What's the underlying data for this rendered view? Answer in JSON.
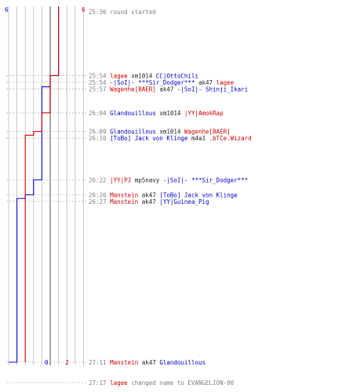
{
  "colors": {
    "team_blue": "#0000cc",
    "team_red": "#cc0000",
    "grid": "#bbbbbb",
    "axis": "#808080",
    "time": "#808080",
    "neutral_text": "#222222",
    "background": "#ffffff"
  },
  "chart_data": {
    "type": "line",
    "x_axis": "team score",
    "y_axis": "game time (mm:ss)",
    "score_ticks": [
      0,
      1,
      2,
      3,
      4,
      5,
      6,
      7,
      8,
      9
    ],
    "start_label": {
      "time": "25:36",
      "text": "round started"
    },
    "score_labels": {
      "blue_start": "6",
      "red_start": "6",
      "blue_end": "0",
      "red_end": "2"
    },
    "series": [
      {
        "team": "blue",
        "points": [
          {
            "t": "25:36",
            "score": 6
          },
          {
            "t": "25:54",
            "score": 5
          },
          {
            "t": "25:57",
            "score": 4
          },
          {
            "t": "26:22",
            "score": 3
          },
          {
            "t": "26:26",
            "score": 2
          },
          {
            "t": "26:27",
            "score": 1
          },
          {
            "t": "27:11",
            "score": 0
          }
        ]
      },
      {
        "team": "red",
        "points": [
          {
            "t": "25:36",
            "score": 6
          },
          {
            "t": "25:54",
            "score": 5
          },
          {
            "t": "26:04",
            "score": 4
          },
          {
            "t": "26:09",
            "score": 3
          },
          {
            "t": "26:10",
            "score": 2
          },
          {
            "t": "27:11",
            "score": 2
          }
        ]
      }
    ],
    "events": [
      {
        "time": "25:54",
        "killer": "lagee",
        "killer_team": "red",
        "weapon": "xm1014",
        "victim": "CC|OttoChili",
        "victim_team": "blue"
      },
      {
        "time": "25:54",
        "killer": "-|SoI|- ***Sir_Dodger***",
        "killer_team": "blue",
        "weapon": "ak47",
        "victim": "lagee",
        "victim_team": "red"
      },
      {
        "time": "25:57",
        "killer": "Wagenhe[BAER]",
        "killer_team": "red",
        "weapon": "ak47",
        "victim": "-|SoI|- Shinji_Ikari",
        "victim_team": "blue"
      },
      {
        "time": "26:04",
        "killer": "Glandouillous",
        "killer_team": "blue",
        "weapon": "xm1014",
        "victim": "|YY|AmokRap",
        "victim_team": "red"
      },
      {
        "time": "26:09",
        "killer": "Glandouillous",
        "killer_team": "blue",
        "weapon": "xm1014",
        "victim": "Wagenhe[BAER]",
        "victim_team": "red"
      },
      {
        "time": "26:10",
        "killer": "[ToBo] Jack von Klinge",
        "killer_team": "blue",
        "weapon": "m4a1",
        "victim": ".bTCe.Wizard",
        "victim_team": "red"
      },
      {
        "time": "26:22",
        "killer": "|YY|PJ",
        "killer_team": "red",
        "weapon": "mp5navy",
        "victim": "-|SoI|- ***Sir_Dodger***",
        "victim_team": "blue"
      },
      {
        "time": "26:26",
        "killer": "Manstein",
        "killer_team": "red",
        "weapon": "ak47",
        "victim": "[ToBo] Jack von Klinge",
        "victim_team": "blue"
      },
      {
        "time": "26:27",
        "killer": "Manstein",
        "killer_team": "red",
        "weapon": "ak47",
        "victim": "|YY|Guinea_Pig",
        "victim_team": "blue"
      },
      {
        "time": "27:11",
        "killer": "Manstein",
        "killer_team": "red",
        "weapon": "ak47",
        "victim": "Glandouillous",
        "victim_team": "blue"
      }
    ],
    "footer": {
      "time": "27:17",
      "player": "lagee",
      "text": "changed name to EVANGELION-00"
    }
  }
}
